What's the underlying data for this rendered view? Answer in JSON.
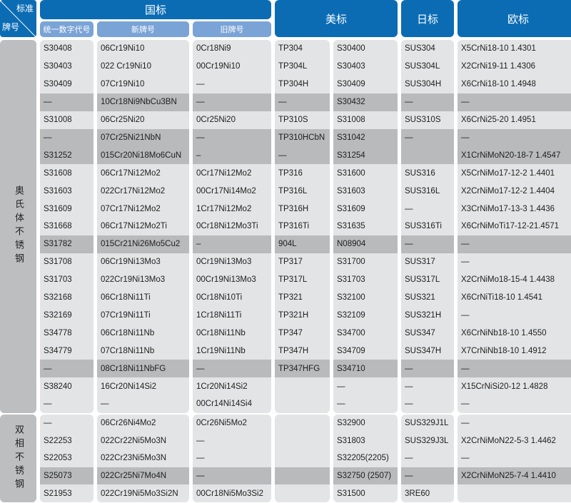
{
  "header": {
    "corner_top": "标准",
    "corner_bottom": "牌号",
    "gb": "国标",
    "gb_sub": [
      "统一数字代号",
      "新牌号",
      "旧牌号"
    ],
    "us": "美标",
    "jp": "日标",
    "eu": "欧标"
  },
  "colors": {
    "header": "#0b6cb4",
    "subheader": "#7aa3d6",
    "row": "#e3e4e5",
    "row_shaded": "#b9babc"
  },
  "sections": [
    {
      "label": "奥氏体不锈钢",
      "shaded_rows": [
        3,
        5,
        6,
        11,
        18
      ],
      "rows": [
        [
          "S30408",
          "06Cr19Ni10",
          "0Cr18Ni9",
          "TP304",
          "S30400",
          "SUS304",
          "X5CrNi18-10 1.4301"
        ],
        [
          "S30403",
          "022 Cr19Ni10",
          "00Cr19Ni10",
          "TP304L",
          "S30403",
          "SUS304L",
          "X2CrNi19-11  1.4306"
        ],
        [
          "S30409",
          "07Cr19Ni10",
          "—",
          "TP304H",
          "S30409",
          "SUS304H",
          "X6CrNi18-10  1.4948"
        ],
        [
          "—",
          "10Cr18Ni9NbCu3BN",
          "—",
          "—",
          "S30432",
          "—",
          "—"
        ],
        [
          "S31008",
          "06Cr25Ni20",
          "0Cr25Ni20",
          "TP310S",
          "S31008",
          "SUS310S",
          "X6CrNi25-20 1.4951"
        ],
        [
          "—",
          "07Cr25Ni21NbN",
          "—",
          "TP310HCbN",
          "S31042",
          "—",
          "—"
        ],
        [
          "S31252",
          "015Cr20Ni18Mo6CuN",
          "–",
          "—",
          "S31254",
          "",
          "X1CrNiMoN20-18-7 1.4547"
        ],
        [
          "S31608",
          "06Cr17Ni12Mo2",
          "0Cr17Ni12Mo2",
          "TP316",
          "S31600",
          "SUS316",
          "X5CrNiMo17-12-2 1.4401"
        ],
        [
          "S31603",
          "022Cr17Ni12Mo2",
          "00Cr17Ni14Mo2",
          "TP316L",
          "S31603",
          "SUS316L",
          "X2CrNiMo17-12-2 1.4404"
        ],
        [
          "S31609",
          "07Cr17Ni12Mo2",
          "1Cr17Ni12Mo2",
          "TP316H",
          "S31609",
          "—",
          "X3CrNiMo17-13-3 1.4436"
        ],
        [
          "S31668",
          "06Cr17Ni12Mo2Ti",
          "0Cr18Ni12Mo3Ti",
          "TP316Ti",
          "S31635",
          "SUS316Ti",
          "X6CrNiMoTi17-12-21.4571"
        ],
        [
          "S31782",
          "015Cr21Ni26Mo5Cu2",
          "–",
          "904L",
          "N08904",
          "—",
          "—"
        ],
        [
          "S31708",
          "06Cr19Ni13Mo3",
          "0Cr19Ni13Mo3",
          "TP317",
          "S31700",
          "SUS317",
          "—"
        ],
        [
          "S31703",
          "022Cr19Ni13Mo3",
          "00Cr19Ni13Mo3",
          "TP317L",
          "S31703",
          "SUS317L",
          "X2CrNiMo18-15-4 1.4438"
        ],
        [
          "S32168",
          "06Cr18Ni11Ti",
          "0Cr18Ni10Ti",
          "TP321",
          "S32100",
          "SUS321",
          "X6CrNiTi18-10 1.4541"
        ],
        [
          "S32169",
          "07Cr19Ni11Ti",
          "1Cr18Ni11Ti",
          "TP321H",
          "S32109",
          "SUS321H",
          "—"
        ],
        [
          "S34778",
          "06Cr18Ni11Nb",
          "0Cr18Ni11Nb",
          "TP347",
          "S34700",
          "SUS347",
          "X6CrNiNb18-10 1.4550"
        ],
        [
          "S34779",
          "07Cr18Ni11Nb",
          "1Cr19Ni11Nb",
          "TP347H",
          "S34709",
          "SUS347H",
          "X7CrNiNb18-10 1.4912"
        ],
        [
          "—",
          "08Cr18Ni11NbFG",
          "—",
          "TP347HFG",
          "S34710",
          "—",
          "—"
        ],
        [
          "S38240",
          "16Cr20Ni14Si2",
          "1Cr20Ni14Si2",
          "",
          "—",
          "—",
          "X15CrNiSi20-12 1.4828"
        ],
        [
          "—",
          "—",
          "00Cr14Ni14Si4",
          "",
          "—",
          "—",
          "—"
        ]
      ]
    },
    {
      "label": "双相不锈钢",
      "shaded_rows": [
        3
      ],
      "rows": [
        [
          "—",
          "06Cr26Ni4Mo2",
          "0Cr26Ni5Mo2",
          "",
          "S32900",
          "SUS329J1L",
          "—"
        ],
        [
          "S22253",
          "022Cr22Ni5Mo3N",
          "—",
          "",
          "S31803",
          "SUS329J3L",
          "X2CrNiMoN22-5-3 1.4462"
        ],
        [
          "S22053",
          "022Cr23Ni5Mo3N",
          "—",
          "",
          "S32205(2205)",
          "—",
          "—"
        ],
        [
          "S25073",
          "022Cr25Ni7Mo4N",
          "—",
          "",
          "S32750 (2507)",
          "—",
          "X2CrNiMoN25-7-4 1.4410"
        ],
        [
          "S21953",
          "022Cr19Ni5Mo3Si2N",
          "00Cr18Ni5Mo3Si2",
          "",
          "S31500",
          "3RE60",
          ""
        ]
      ]
    }
  ]
}
